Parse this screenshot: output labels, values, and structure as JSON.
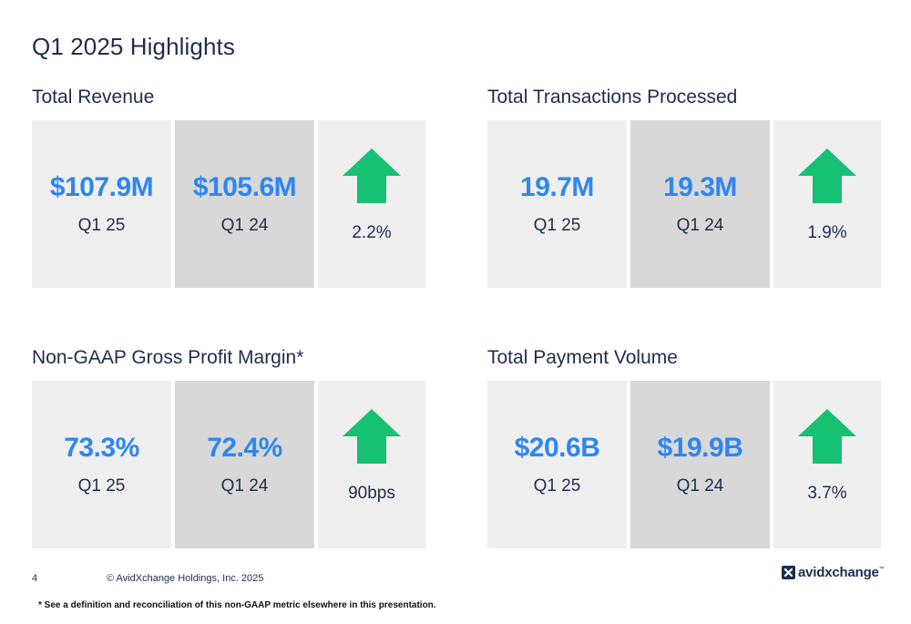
{
  "page": {
    "title": "Q1 2025 Highlights"
  },
  "sections": [
    {
      "title": "Total Revenue",
      "current": {
        "value": "$107.9M",
        "period": "Q1 25"
      },
      "prior": {
        "value": "$105.6M",
        "period": "Q1 24"
      },
      "change": {
        "value": "2.2%",
        "direction": "up"
      }
    },
    {
      "title": "Total Transactions Processed",
      "current": {
        "value": "19.7M",
        "period": "Q1 25"
      },
      "prior": {
        "value": "19.3M",
        "period": "Q1 24"
      },
      "change": {
        "value": "1.9%",
        "direction": "up"
      }
    },
    {
      "title": "Non-GAAP Gross Profit Margin*",
      "current": {
        "value": "73.3%",
        "period": "Q1 25"
      },
      "prior": {
        "value": "72.4%",
        "period": "Q1 24"
      },
      "change": {
        "value": "90bps",
        "direction": "up"
      }
    },
    {
      "title": "Total Payment Volume",
      "current": {
        "value": "$20.6B",
        "period": "Q1 25"
      },
      "prior": {
        "value": "$19.9B",
        "period": "Q1 24"
      },
      "change": {
        "value": "3.7%",
        "direction": "up"
      }
    }
  ],
  "footer": {
    "page_number": "4",
    "copyright": "© AvidXchange Holdings, Inc. 2025",
    "footnote": "* See a definition and reconciliation of this non-GAAP metric elsewhere in this presentation.",
    "logo_text": "avidxchange",
    "logo_tm": "™"
  },
  "colors": {
    "value_blue": "#2e86f0",
    "arrow_green": "#17c172",
    "text_navy": "#1f2d4d",
    "tile_light": "#efefef",
    "tile_dark": "#d8d8d8"
  },
  "icons": {
    "change_indicator": "arrow-up-icon",
    "logo_mark": "x-logo-icon"
  }
}
